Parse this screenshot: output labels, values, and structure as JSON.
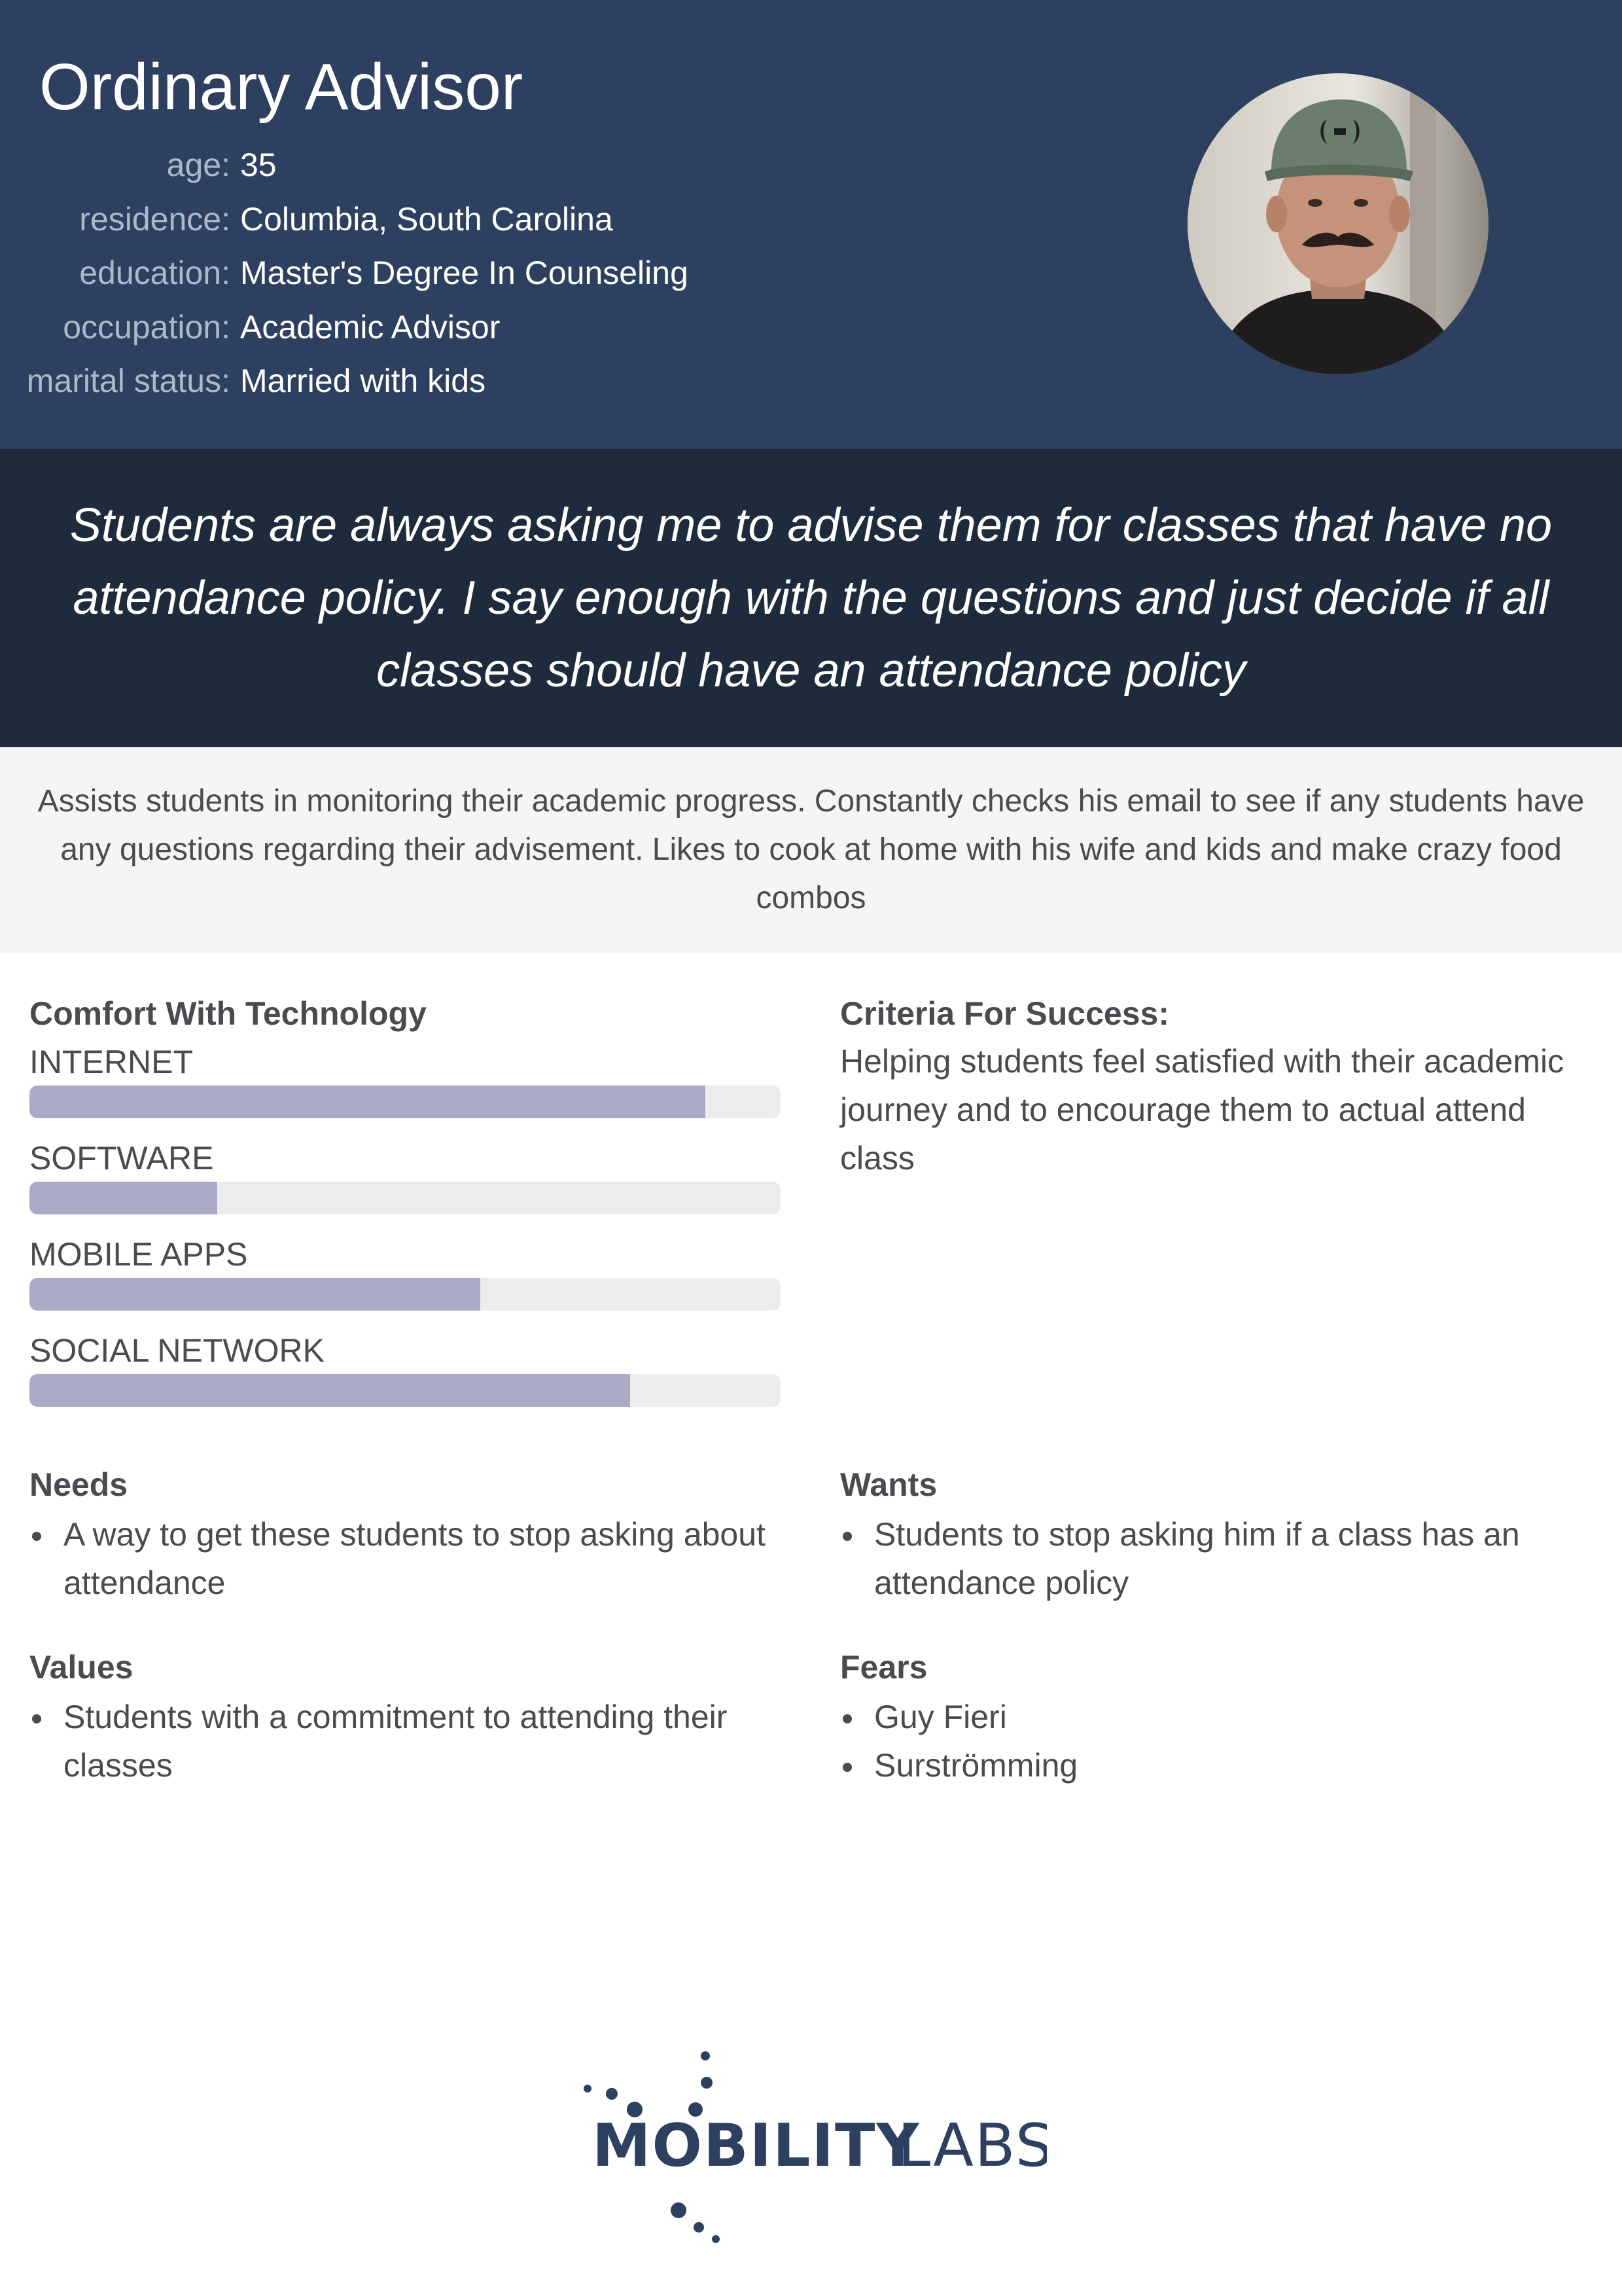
{
  "persona": {
    "name": "Ordinary Advisor",
    "details": [
      {
        "label": "age:",
        "value": "35"
      },
      {
        "label": "residence:",
        "value": "Columbia, South Carolina"
      },
      {
        "label": "education:",
        "value": "Master's Degree In Counseling"
      },
      {
        "label": "occupation:",
        "value": "Academic Advisor"
      },
      {
        "label": "marital status:",
        "value": "Married with kids"
      }
    ]
  },
  "quote": "Students are always asking me to advise them for classes that have no attendance policy. I say enough with the questions and just decide if all classes should have an attendance policy",
  "bio": "Assists students in monitoring their academic progress. Constantly checks his email to see if any students have any questions regarding their advisement. Likes to cook at home with his wife and kids and make crazy food combos",
  "technology": {
    "title": "Comfort With Technology",
    "items": [
      {
        "label": "INTERNET",
        "level": 0.9
      },
      {
        "label": "SOFTWARE",
        "level": 0.25
      },
      {
        "label": "MOBILE APPS",
        "level": 0.6
      },
      {
        "label": "SOCIAL NETWORK",
        "level": 0.8
      }
    ]
  },
  "criteria": {
    "title": "Criteria For Success:",
    "text": "Helping students feel satisfied with their academic journey and to encourage them to actual attend class"
  },
  "needs": {
    "title": "Needs",
    "items": [
      "A way to get these students to stop asking about attendance"
    ]
  },
  "wants": {
    "title": "Wants",
    "items": [
      "Students to stop asking him if a class has an attendance policy"
    ]
  },
  "values": {
    "title": "Values",
    "items": [
      "Students with a commitment to attending their classes"
    ]
  },
  "fears": {
    "title": "Fears",
    "items": [
      "Guy Fieri",
      "Surströmming"
    ]
  },
  "logo": {
    "word1": "MOBILITY",
    "word2": "LABS",
    "color": "#2e4060"
  },
  "colors": {
    "header": "#2e4060",
    "quote_band": "#1e2b3d",
    "bio_band": "#f5f5f5",
    "bar_fill": "#abaac6",
    "bar_track": "#ececec"
  }
}
